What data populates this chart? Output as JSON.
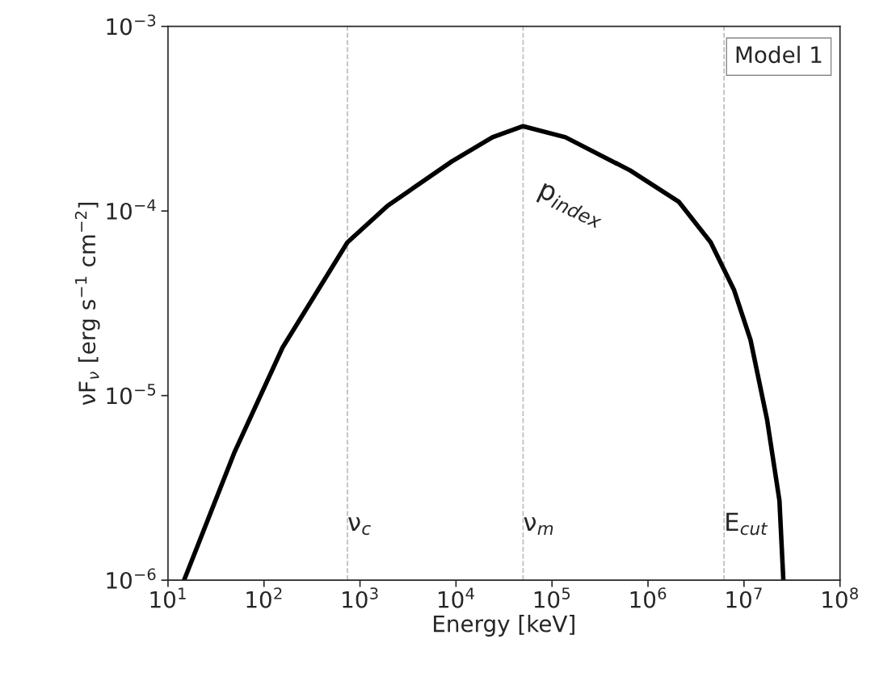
{
  "chart_data": {
    "type": "line",
    "xlabel": "Energy [keV]",
    "ylabel": "νF$_{ν}$ [erg s$^{−1}$ cm$^{−2}$]",
    "log": "xy",
    "grid": false,
    "line_style": "solid",
    "marker": "none",
    "xlim": [
      10,
      100000000
    ],
    "ylim": [
      1e-06,
      0.001
    ],
    "xticks": [
      {
        "value": 10,
        "label": "10$^{1}$"
      },
      {
        "value": 100,
        "label": "10$^{2}$"
      },
      {
        "value": 1000,
        "label": "10$^{3}$"
      },
      {
        "value": 10000,
        "label": "10$^{4}$"
      },
      {
        "value": 100000,
        "label": "10$^{5}$"
      },
      {
        "value": 1000000,
        "label": "10$^{6}$"
      },
      {
        "value": 10000000,
        "label": "10$^{7}$"
      },
      {
        "value": 100000000,
        "label": "10$^{8}$"
      }
    ],
    "yticks": [
      {
        "value": 1e-06,
        "label": "10$^{−6}$"
      },
      {
        "value": 1e-05,
        "label": "10$^{−5}$"
      },
      {
        "value": 0.0001,
        "label": "10$^{−4}$"
      },
      {
        "value": 0.001,
        "label": "10$^{−3}$"
      }
    ],
    "series": [
      {
        "color": "#000000",
        "x": [
          14.7,
          49,
          156,
          740,
          1950,
          9100,
          24000,
          50000,
          138000,
          650000,
          2100000,
          4500000,
          7900000,
          11700000,
          17400000,
          23400000,
          25700000
        ],
        "values": [
          1e-06,
          4.9e-06,
          1.82e-05,
          6.76e-05,
          0.000107,
          0.000186,
          0.000251,
          0.000288,
          0.000251,
          0.000166,
          0.000112,
          6.76e-05,
          3.72e-05,
          2e-05,
          7.4e-06,
          2.7e-06,
          1e-06
        ]
      }
    ],
    "ref_lines": [
      {
        "axis": "x",
        "value": 740,
        "label": "ν$_{c}$",
        "color": "#bbbbbb",
        "line_style": "dashed"
      },
      {
        "axis": "x",
        "value": 50000,
        "label": "ν$_{m}$",
        "color": "#bbbbbb",
        "line_style": "dashed"
      },
      {
        "axis": "x",
        "value": 6200000,
        "label": "E$_{cut}$",
        "color": "#bbbbbb",
        "line_style": "dashed"
      }
    ],
    "annotations": [
      "p$_{index}$",
      "Model 1"
    ]
  }
}
